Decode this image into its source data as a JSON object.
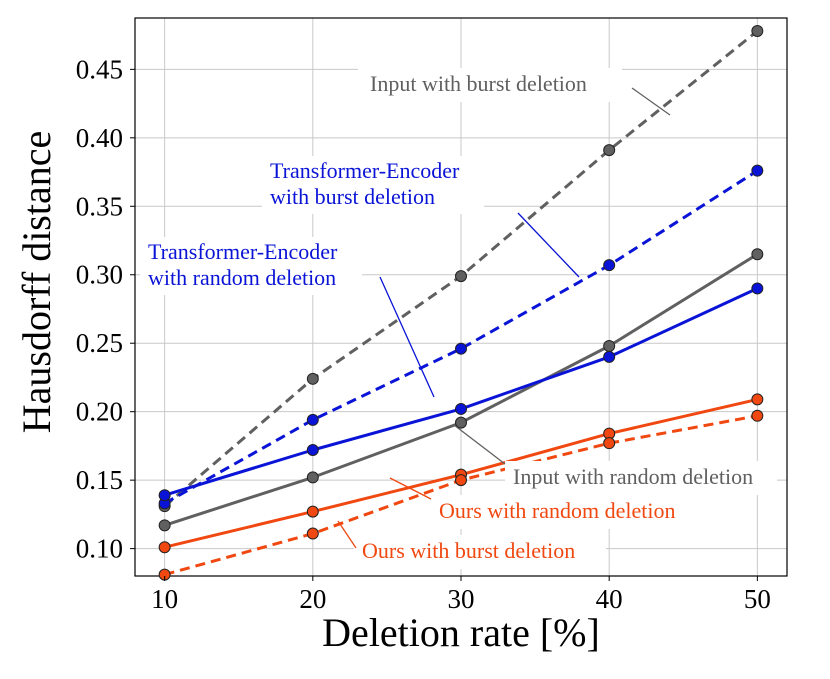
{
  "chart_data": {
    "type": "line",
    "title": "",
    "xlabel": "Deletion rate [%]",
    "ylabel": "Hausdorff distance",
    "x": [
      10,
      20,
      30,
      40,
      50
    ],
    "xlim": [
      8,
      52
    ],
    "ylim": [
      0.08,
      0.4875
    ],
    "xticks": [
      10,
      20,
      30,
      40,
      50
    ],
    "xtick_labels": [
      "10",
      "20",
      "30",
      "40",
      "50"
    ],
    "yticks": [
      0.1,
      0.15,
      0.2,
      0.25,
      0.3,
      0.35,
      0.4,
      0.45
    ],
    "ytick_labels": [
      "0.10",
      "0.15",
      "0.20",
      "0.25",
      "0.30",
      "0.35",
      "0.40",
      "0.45"
    ],
    "grid": true,
    "legend": "none",
    "series": [
      {
        "name": "Input with burst deletion",
        "color": "#606060",
        "linestyle": "dashed",
        "values": [
          0.131,
          0.224,
          0.299,
          0.391,
          0.478
        ]
      },
      {
        "name": "Transformer-Encoder with burst deletion",
        "color": "#0a14d6",
        "linestyle": "dashed",
        "values": [
          0.133,
          0.194,
          0.246,
          0.307,
          0.376
        ]
      },
      {
        "name": "Input with random deletion",
        "color": "#606060",
        "linestyle": "solid",
        "values": [
          0.117,
          0.152,
          0.192,
          0.248,
          0.315
        ]
      },
      {
        "name": "Transformer-Encoder with random deletion",
        "color": "#0a14d6",
        "linestyle": "solid",
        "values": [
          0.139,
          0.172,
          0.202,
          0.24,
          0.29
        ]
      },
      {
        "name": "Ours with random deletion",
        "color": "#f04810",
        "linestyle": "solid",
        "values": [
          0.101,
          0.127,
          0.154,
          0.184,
          0.209
        ]
      },
      {
        "name": "Ours with burst deletion",
        "color": "#f04810",
        "linestyle": "dashed",
        "values": [
          0.081,
          0.111,
          0.15,
          0.177,
          0.197
        ]
      }
    ],
    "annotations": [
      {
        "id": "input-burst",
        "lines": [
          "Input with burst deletion"
        ],
        "color": "#606060"
      },
      {
        "id": "te-burst",
        "lines": [
          "Transformer-Encoder",
          "with burst deletion"
        ],
        "color": "#0a14d6"
      },
      {
        "id": "te-random",
        "lines": [
          "Transformer-Encoder",
          "with random deletion"
        ],
        "color": "#0a14d6"
      },
      {
        "id": "input-random",
        "lines": [
          "Input with random deletion"
        ],
        "color": "#606060"
      },
      {
        "id": "ours-random",
        "lines": [
          "Ours with random deletion"
        ],
        "color": "#f04810"
      },
      {
        "id": "ours-burst",
        "lines": [
          "Ours with burst deletion"
        ],
        "color": "#f04810"
      }
    ]
  }
}
